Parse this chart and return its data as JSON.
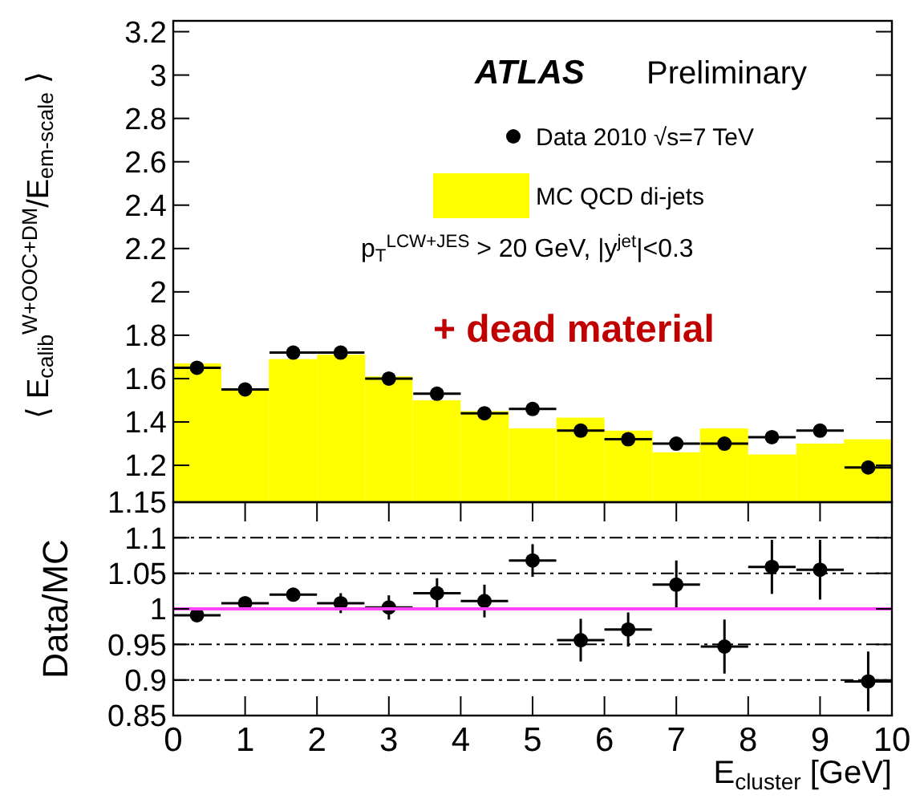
{
  "chart_data": [
    {
      "type": "histogram",
      "ylabel": "⟨ E$_{calib}$$^{W+OOC+DM}$/E$_{em-scale}$ ⟩",
      "bins": [
        0,
        0.67,
        1.33,
        2,
        2.67,
        3.33,
        4,
        4.67,
        5.33,
        6,
        6.67,
        7.33,
        8,
        8.67,
        9.33,
        10
      ],
      "xlim": [
        0,
        10
      ],
      "ylim": [
        1.03,
        3.25
      ],
      "yticks": [
        1.2,
        1.4,
        1.6,
        1.8,
        2,
        2.2,
        2.4,
        2.6,
        2.8,
        3,
        3.2
      ],
      "tick_labels": "y",
      "legend": "top right",
      "series": [
        {
          "name": "Data 2010 √s=7 TeV",
          "type": "scatter",
          "color": "#000000",
          "x": [
            0.33,
            1,
            1.67,
            2.33,
            3,
            3.67,
            4.33,
            5,
            5.67,
            6.33,
            7,
            7.67,
            8.33,
            9,
            9.67
          ],
          "values": [
            1.65,
            1.55,
            1.72,
            1.72,
            1.6,
            1.53,
            1.44,
            1.46,
            1.36,
            1.32,
            1.3,
            1.3,
            1.33,
            1.36,
            1.19
          ],
          "xerrors": [
            0.33,
            0.33,
            0.33,
            0.33,
            0.33,
            0.33,
            0.33,
            0.33,
            0.33,
            0.33,
            0.33,
            0.33,
            0.33,
            0.33,
            0.33
          ]
        },
        {
          "name": "MC QCD di-jets",
          "color": "#ffff00",
          "values": [
            1.67,
            1.55,
            1.69,
            1.71,
            1.61,
            1.5,
            1.45,
            1.37,
            1.42,
            1.36,
            1.26,
            1.37,
            1.25,
            1.3,
            1.32
          ]
        }
      ],
      "annotations": [
        "ATLAS",
        "Preliminary",
        "p$_{T}$$^{LCW+JES}$ > 20 GeV, |y$^{jet}$|<0.3",
        "+ dead material"
      ]
    },
    {
      "type": "scatter",
      "xlabel": "E$_{cluster}$ [GeV]",
      "ylabel": "Data/MC",
      "xlim": [
        0,
        10
      ],
      "xticks": [
        0,
        1,
        2,
        3,
        4,
        5,
        6,
        7,
        8,
        9,
        10
      ],
      "ylim": [
        0.85,
        1.15
      ],
      "yticks": [
        0.85,
        0.9,
        0.95,
        1,
        1.05,
        1.1,
        1.15
      ],
      "x": [
        0.33,
        1,
        1.67,
        2.33,
        3,
        3.67,
        4.33,
        5,
        5.67,
        6.33,
        7,
        7.67,
        8.33,
        9,
        9.67
      ],
      "values": [
        0.991,
        1.008,
        1.02,
        1.008,
        1.002,
        1.022,
        1.011,
        1.068,
        0.956,
        0.971,
        1.034,
        0.947,
        1.059,
        1.055,
        0.898
      ],
      "errors": [
        0.005,
        0.004,
        0.005,
        0.014,
        0.017,
        0.021,
        0.023,
        0.023,
        0.03,
        0.024,
        0.034,
        0.038,
        0.038,
        0.042,
        0.042
      ],
      "xerrors": [
        0.33,
        0.33,
        0.33,
        0.33,
        0.33,
        0.33,
        0.33,
        0.33,
        0.33,
        0.33,
        0.33,
        0.33,
        0.33,
        0.33,
        0.33
      ],
      "color": "#000000",
      "ref_lines": [
        {
          "axis": "y",
          "value": 1,
          "color": "#ff44ff",
          "line_style": "solid"
        },
        {
          "axis": "y",
          "value": 0.9,
          "color": "#000000",
          "line_style": "dashed"
        },
        {
          "axis": "y",
          "value": 0.95,
          "color": "#000000",
          "line_style": "dashed"
        },
        {
          "axis": "y",
          "value": 1.05,
          "color": "#000000",
          "line_style": "dashed"
        },
        {
          "axis": "y",
          "value": 1.1,
          "color": "#000000",
          "line_style": "dashed"
        }
      ]
    }
  ]
}
